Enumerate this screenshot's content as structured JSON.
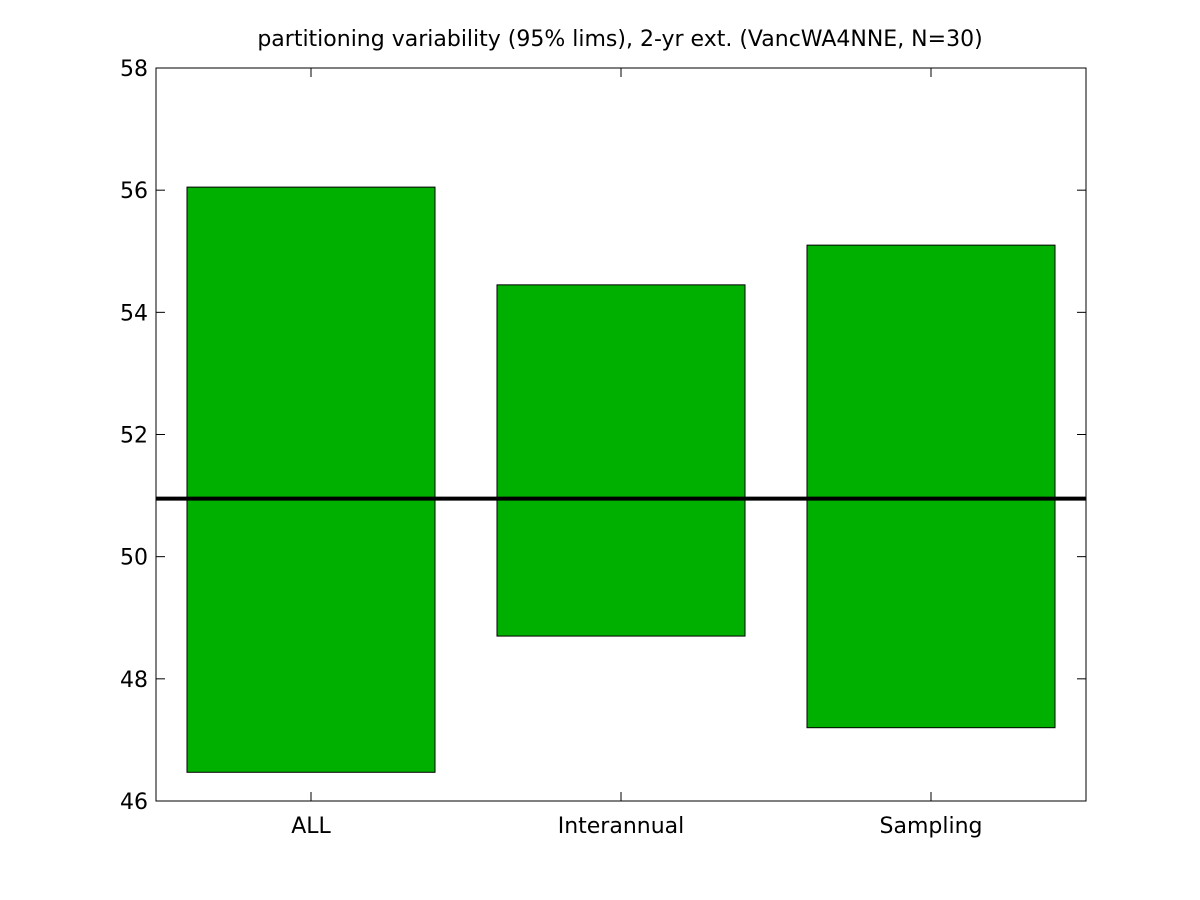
{
  "chart_data": {
    "type": "bar",
    "title": "partitioning variability (95% lims), 2-yr ext. (VancWA4NNE, N=30)",
    "xlabel": "",
    "ylabel": "",
    "categories": [
      "ALL",
      "Interannual",
      "Sampling"
    ],
    "ranges": [
      {
        "category": "ALL",
        "low": 46.47,
        "high": 56.05
      },
      {
        "category": "Interannual",
        "low": 48.7,
        "high": 54.45
      },
      {
        "category": "Sampling",
        "low": 47.2,
        "high": 55.1
      }
    ],
    "reference_line": 50.95,
    "ylim": [
      46,
      58
    ],
    "yticks": [
      46,
      48,
      50,
      52,
      54,
      56,
      58
    ],
    "ytick_labels": [
      "46",
      "48",
      "50",
      "52",
      "54",
      "56",
      "58"
    ],
    "grid": false,
    "bar_color": "#00b000",
    "line_color": "#000000"
  }
}
